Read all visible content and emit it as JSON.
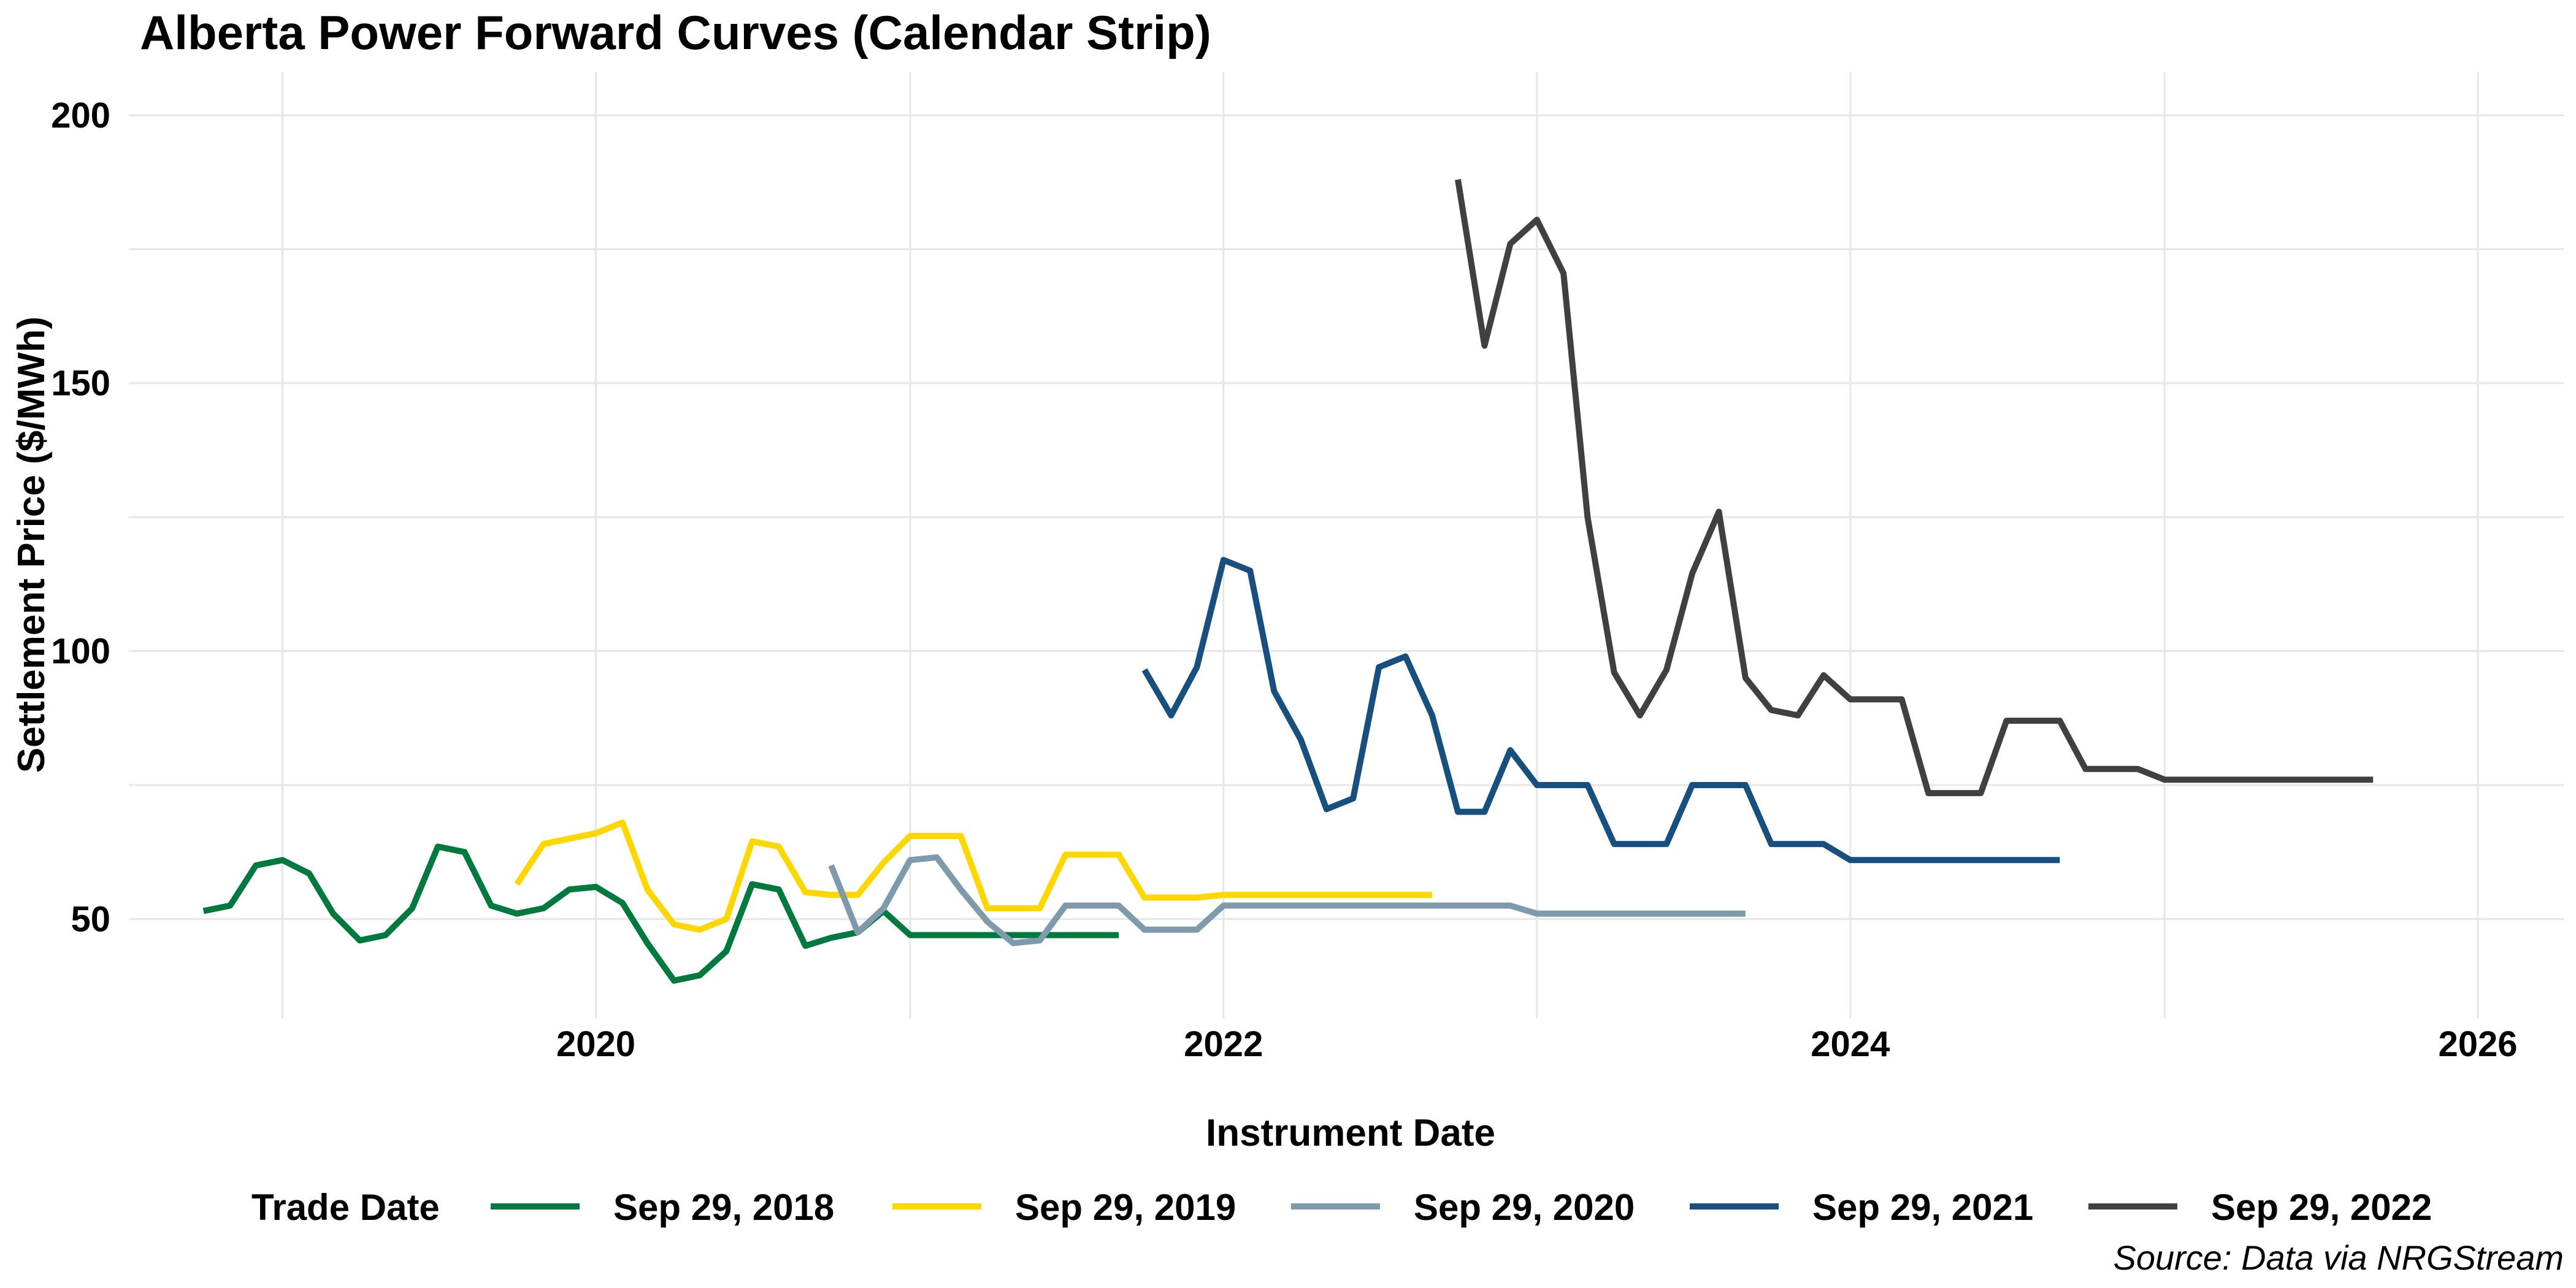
{
  "chart_data": {
    "type": "line",
    "title": "Alberta Power Forward Curves (Calendar Strip)",
    "xlabel": "Instrument Date",
    "ylabel": "Settlement Price ($/MWh)",
    "caption": "Source: Data via NRGStream",
    "legend_title": "Trade Date",
    "legend_position": "bottom",
    "grid": true,
    "xlim": [
      "2018-07-06",
      "2026-04-11"
    ],
    "ylim": [
      31.5,
      208
    ],
    "x_ticks": [
      "2020",
      "2022",
      "2024",
      "2026"
    ],
    "y_ticks": [
      50,
      100,
      150,
      200
    ],
    "series": [
      {
        "name": "Sep 29, 2018",
        "color": "#00793f",
        "points": [
          [
            "2018-10-01",
            51.5
          ],
          [
            "2018-11-01",
            52.5
          ],
          [
            "2018-12-01",
            60
          ],
          [
            "2019-01-01",
            61
          ],
          [
            "2019-02-01",
            58.5
          ],
          [
            "2019-03-01",
            51
          ],
          [
            "2019-04-01",
            46
          ],
          [
            "2019-05-01",
            47
          ],
          [
            "2019-06-01",
            52
          ],
          [
            "2019-07-01",
            63.5
          ],
          [
            "2019-08-01",
            62.5
          ],
          [
            "2019-09-01",
            52.5
          ],
          [
            "2019-10-01",
            51
          ],
          [
            "2019-11-01",
            52
          ],
          [
            "2019-12-01",
            55.5
          ],
          [
            "2020-01-01",
            56
          ],
          [
            "2020-02-01",
            53
          ],
          [
            "2020-03-01",
            45.5
          ],
          [
            "2020-04-01",
            38.5
          ],
          [
            "2020-05-01",
            39.5
          ],
          [
            "2020-06-01",
            44
          ],
          [
            "2020-07-01",
            56.5
          ],
          [
            "2020-08-01",
            55.5
          ],
          [
            "2020-09-01",
            45
          ],
          [
            "2020-10-01",
            46.5
          ],
          [
            "2020-11-01",
            47.5
          ],
          [
            "2020-12-01",
            51.5
          ],
          [
            "2021-01-01",
            47
          ],
          [
            "2021-02-01",
            47
          ],
          [
            "2021-03-01",
            47
          ],
          [
            "2021-04-01",
            47
          ],
          [
            "2021-05-01",
            47
          ],
          [
            "2021-06-01",
            47
          ],
          [
            "2021-07-01",
            47
          ],
          [
            "2021-08-01",
            47
          ],
          [
            "2021-09-01",
            47
          ]
        ]
      },
      {
        "name": "Sep 29, 2019",
        "color": "#ffd700",
        "points": [
          [
            "2019-10-01",
            56.5
          ],
          [
            "2019-11-01",
            64
          ],
          [
            "2019-12-01",
            65
          ],
          [
            "2020-01-01",
            66
          ],
          [
            "2020-02-01",
            68
          ],
          [
            "2020-03-01",
            55.5
          ],
          [
            "2020-04-01",
            49
          ],
          [
            "2020-05-01",
            48
          ],
          [
            "2020-06-01",
            50
          ],
          [
            "2020-07-01",
            64.5
          ],
          [
            "2020-08-01",
            63.5
          ],
          [
            "2020-09-01",
            55
          ],
          [
            "2020-10-01",
            54.5
          ],
          [
            "2020-11-01",
            54.5
          ],
          [
            "2020-12-01",
            60.5
          ],
          [
            "2021-01-01",
            65.5
          ],
          [
            "2021-02-01",
            65.5
          ],
          [
            "2021-03-01",
            65.5
          ],
          [
            "2021-04-01",
            52
          ],
          [
            "2021-05-01",
            52
          ],
          [
            "2021-06-01",
            52
          ],
          [
            "2021-07-01",
            62
          ],
          [
            "2021-08-01",
            62
          ],
          [
            "2021-09-01",
            62
          ],
          [
            "2021-10-01",
            54
          ],
          [
            "2021-11-01",
            54
          ],
          [
            "2021-12-01",
            54
          ],
          [
            "2022-01-01",
            54.5
          ],
          [
            "2022-02-01",
            54.5
          ],
          [
            "2022-03-01",
            54.5
          ],
          [
            "2022-04-01",
            54.5
          ],
          [
            "2022-05-01",
            54.5
          ],
          [
            "2022-06-01",
            54.5
          ],
          [
            "2022-07-01",
            54.5
          ],
          [
            "2022-08-01",
            54.5
          ],
          [
            "2022-09-01",
            54.5
          ]
        ]
      },
      {
        "name": "Sep 29, 2020",
        "color": "#7f9aab",
        "points": [
          [
            "2020-10-01",
            60
          ],
          [
            "2020-11-01",
            47.5
          ],
          [
            "2020-12-01",
            52
          ],
          [
            "2021-01-01",
            61
          ],
          [
            "2021-02-01",
            61.5
          ],
          [
            "2021-03-01",
            55.5
          ],
          [
            "2021-04-01",
            49.5
          ],
          [
            "2021-05-01",
            45.5
          ],
          [
            "2021-06-01",
            46
          ],
          [
            "2021-07-01",
            52.5
          ],
          [
            "2021-08-01",
            52.5
          ],
          [
            "2021-09-01",
            52.5
          ],
          [
            "2021-10-01",
            48
          ],
          [
            "2021-11-01",
            48
          ],
          [
            "2021-12-01",
            48
          ],
          [
            "2022-01-01",
            52.5
          ],
          [
            "2022-02-01",
            52.5
          ],
          [
            "2022-03-01",
            52.5
          ],
          [
            "2022-04-01",
            52.5
          ],
          [
            "2022-05-01",
            52.5
          ],
          [
            "2022-06-01",
            52.5
          ],
          [
            "2022-07-01",
            52.5
          ],
          [
            "2022-08-01",
            52.5
          ],
          [
            "2022-09-01",
            52.5
          ],
          [
            "2022-10-01",
            52.5
          ],
          [
            "2022-11-01",
            52.5
          ],
          [
            "2022-12-01",
            52.5
          ],
          [
            "2023-01-01",
            51
          ],
          [
            "2023-02-01",
            51
          ],
          [
            "2023-03-01",
            51
          ],
          [
            "2023-04-01",
            51
          ],
          [
            "2023-05-01",
            51
          ],
          [
            "2023-06-01",
            51
          ],
          [
            "2023-07-01",
            51
          ],
          [
            "2023-08-01",
            51
          ],
          [
            "2023-09-01",
            51
          ]
        ]
      },
      {
        "name": "Sep 29, 2021",
        "color": "#17507f",
        "points": [
          [
            "2021-10-01",
            96.5
          ],
          [
            "2021-11-01",
            88
          ],
          [
            "2021-12-01",
            97
          ],
          [
            "2022-01-01",
            117
          ],
          [
            "2022-02-01",
            115
          ],
          [
            "2022-03-01",
            92.5
          ],
          [
            "2022-04-01",
            83.5
          ],
          [
            "2022-05-01",
            70.5
          ],
          [
            "2022-06-01",
            72.5
          ],
          [
            "2022-07-01",
            97
          ],
          [
            "2022-08-01",
            99
          ],
          [
            "2022-09-01",
            88
          ],
          [
            "2022-10-01",
            70
          ],
          [
            "2022-11-01",
            70
          ],
          [
            "2022-12-01",
            81.5
          ],
          [
            "2023-01-01",
            75
          ],
          [
            "2023-02-01",
            75
          ],
          [
            "2023-03-01",
            75
          ],
          [
            "2023-04-01",
            64
          ],
          [
            "2023-05-01",
            64
          ],
          [
            "2023-06-01",
            64
          ],
          [
            "2023-07-01",
            75
          ],
          [
            "2023-08-01",
            75
          ],
          [
            "2023-09-01",
            75
          ],
          [
            "2023-10-01",
            64
          ],
          [
            "2023-11-01",
            64
          ],
          [
            "2023-12-01",
            64
          ],
          [
            "2024-01-01",
            61
          ],
          [
            "2024-02-01",
            61
          ],
          [
            "2024-03-01",
            61
          ],
          [
            "2024-04-01",
            61
          ],
          [
            "2024-05-01",
            61
          ],
          [
            "2024-06-01",
            61
          ],
          [
            "2024-07-01",
            61
          ],
          [
            "2024-08-01",
            61
          ],
          [
            "2024-09-01",
            61
          ]
        ]
      },
      {
        "name": "Sep 29, 2022",
        "color": "#404040",
        "points": [
          [
            "2022-10-01",
            188
          ],
          [
            "2022-11-01",
            157
          ],
          [
            "2022-12-01",
            176
          ],
          [
            "2023-01-01",
            180.5
          ],
          [
            "2023-02-01",
            170.5
          ],
          [
            "2023-03-01",
            125
          ],
          [
            "2023-04-01",
            96
          ],
          [
            "2023-05-01",
            88
          ],
          [
            "2023-06-01",
            96.5
          ],
          [
            "2023-07-01",
            114.5
          ],
          [
            "2023-08-01",
            126
          ],
          [
            "2023-09-01",
            95
          ],
          [
            "2023-10-01",
            89
          ],
          [
            "2023-11-01",
            88
          ],
          [
            "2023-12-01",
            95.5
          ],
          [
            "2024-01-01",
            91
          ],
          [
            "2024-02-01",
            91
          ],
          [
            "2024-03-01",
            91
          ],
          [
            "2024-04-01",
            73.5
          ],
          [
            "2024-05-01",
            73.5
          ],
          [
            "2024-06-01",
            73.5
          ],
          [
            "2024-07-01",
            87
          ],
          [
            "2024-08-01",
            87
          ],
          [
            "2024-09-01",
            87
          ],
          [
            "2024-10-01",
            78
          ],
          [
            "2024-11-01",
            78
          ],
          [
            "2024-12-01",
            78
          ],
          [
            "2025-01-01",
            76
          ],
          [
            "2025-02-01",
            76
          ],
          [
            "2025-03-01",
            76
          ],
          [
            "2025-04-01",
            76
          ],
          [
            "2025-05-01",
            76
          ],
          [
            "2025-06-01",
            76
          ],
          [
            "2025-07-01",
            76
          ],
          [
            "2025-08-01",
            76
          ],
          [
            "2025-09-01",
            76
          ]
        ]
      }
    ]
  }
}
